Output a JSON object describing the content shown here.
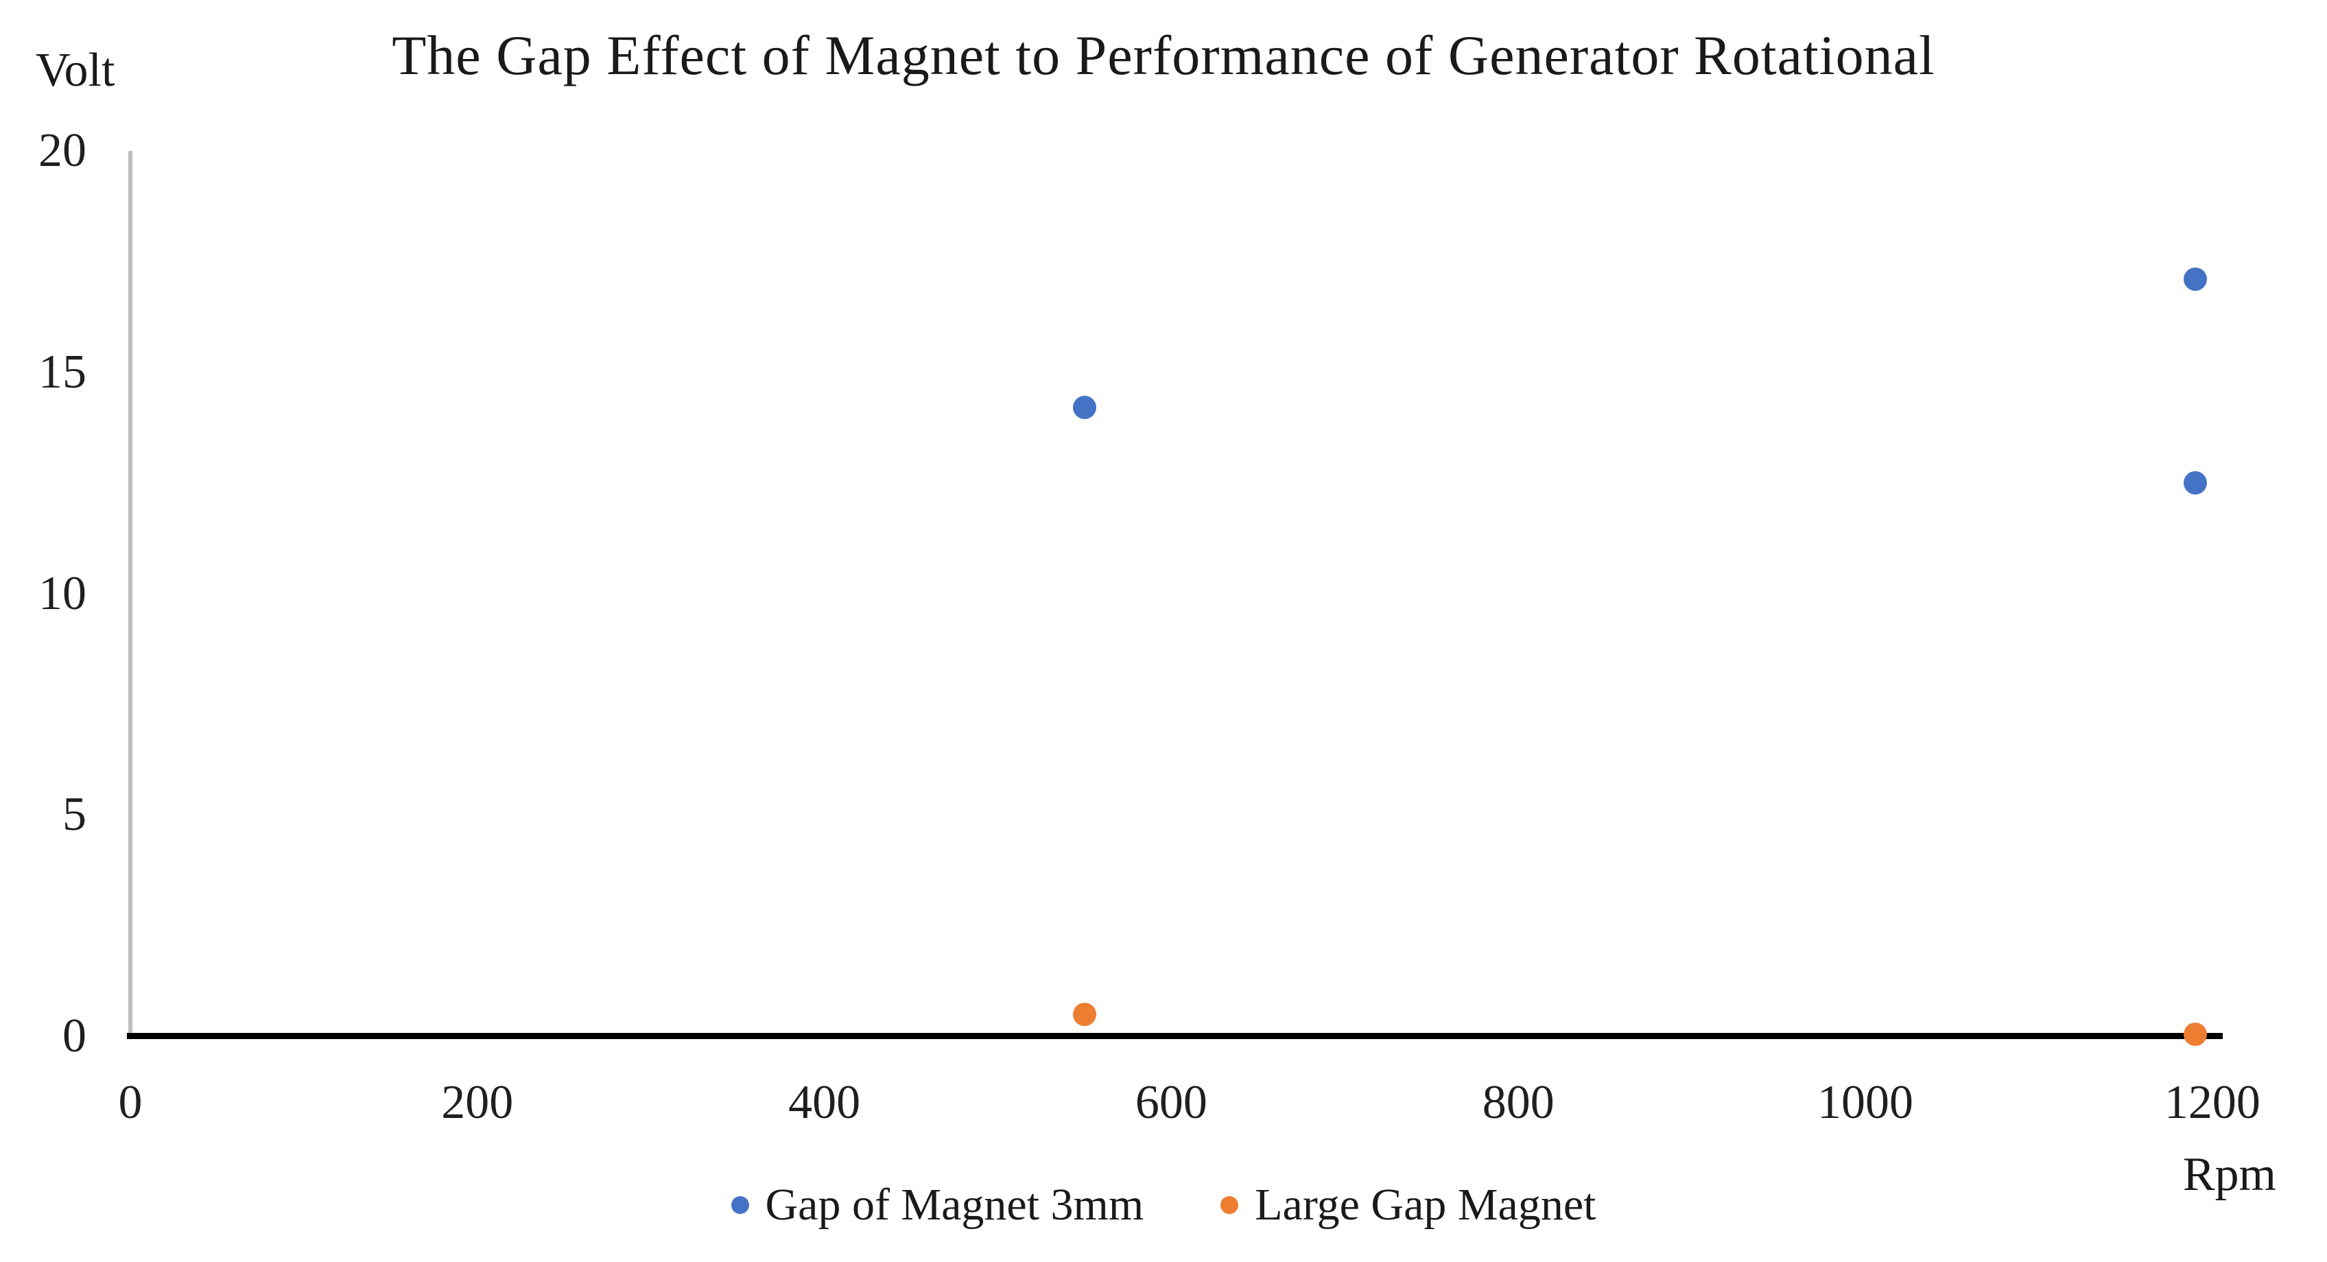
{
  "chart_data": {
    "type": "scatter",
    "title": "The Gap Effect of Magnet to Performance of Generator Rotational",
    "xlabel": "Rpm",
    "ylabel": "Volt",
    "xlim": [
      0,
      1206
    ],
    "ylim": [
      0,
      20
    ],
    "x_ticks": [
      0,
      200,
      400,
      600,
      800,
      1000,
      1200
    ],
    "y_ticks": [
      20,
      15,
      10,
      5,
      0
    ],
    "grid": false,
    "legend_position": "bottom",
    "series": [
      {
        "name": "Gap of Magnet 3mm",
        "color": "#4472C4",
        "points": [
          [
            550,
            14.2
          ],
          [
            1190,
            17.1
          ],
          [
            1190,
            12.5
          ]
        ]
      },
      {
        "name": "Large Gap Magnet",
        "color": "#ED7D31",
        "points": [
          [
            550,
            0.5
          ],
          [
            1190,
            0.05
          ]
        ]
      }
    ]
  },
  "colors": {
    "x_axis_line": "#000000",
    "y_axis_line": "#BFBFBF",
    "text": "#1f1f1f"
  }
}
